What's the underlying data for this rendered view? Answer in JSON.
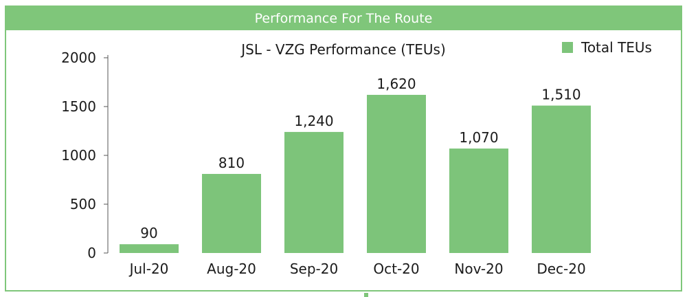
{
  "header": {
    "title": "Performance For The Route"
  },
  "chart_data": {
    "type": "bar",
    "title": "JSL - VZG Performance (TEUs)",
    "xlabel": "",
    "ylabel": "",
    "categories": [
      "Jul-20",
      "Aug-20",
      "Sep-20",
      "Oct-20",
      "Nov-20",
      "Dec-20"
    ],
    "series": [
      {
        "name": "Total TEUs",
        "values": [
          90,
          810,
          1240,
          1620,
          1070,
          1510
        ],
        "labels": [
          "90",
          "810",
          "1,240",
          "1,620",
          "1,070",
          "1,510"
        ],
        "color": "#7dc47a"
      }
    ],
    "ylim": [
      0,
      2000
    ],
    "yticks": [
      0,
      500,
      1000,
      1500,
      2000
    ],
    "grid": false,
    "legend": "top-right"
  }
}
